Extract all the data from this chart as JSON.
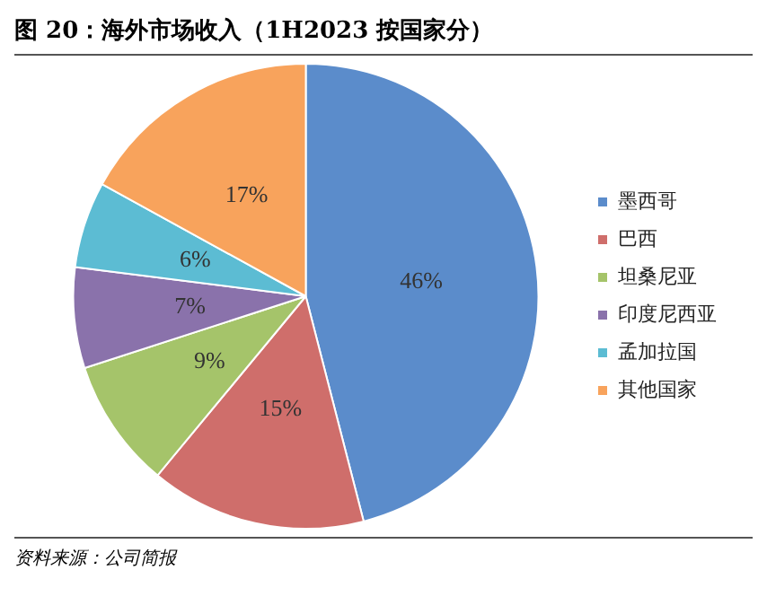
{
  "chart_data": {
    "type": "pie",
    "title": "图 20：海外市场收入（1H2023 按国家分）",
    "categories": [
      "墨西哥",
      "巴西",
      "坦桑尼亚",
      "印度尼西亚",
      "孟加拉国",
      "其他国家"
    ],
    "values": [
      46,
      15,
      9,
      7,
      6,
      17
    ],
    "value_labels": [
      "46%",
      "15%",
      "9%",
      "7%",
      "6%",
      "17%"
    ],
    "colors": [
      "#5b8ccb",
      "#cf6e6b",
      "#a5c46a",
      "#8a72ab",
      "#5cbcd3",
      "#f8a35c"
    ],
    "legend": "right",
    "annotations": [
      "资料来源：公司简报"
    ]
  }
}
